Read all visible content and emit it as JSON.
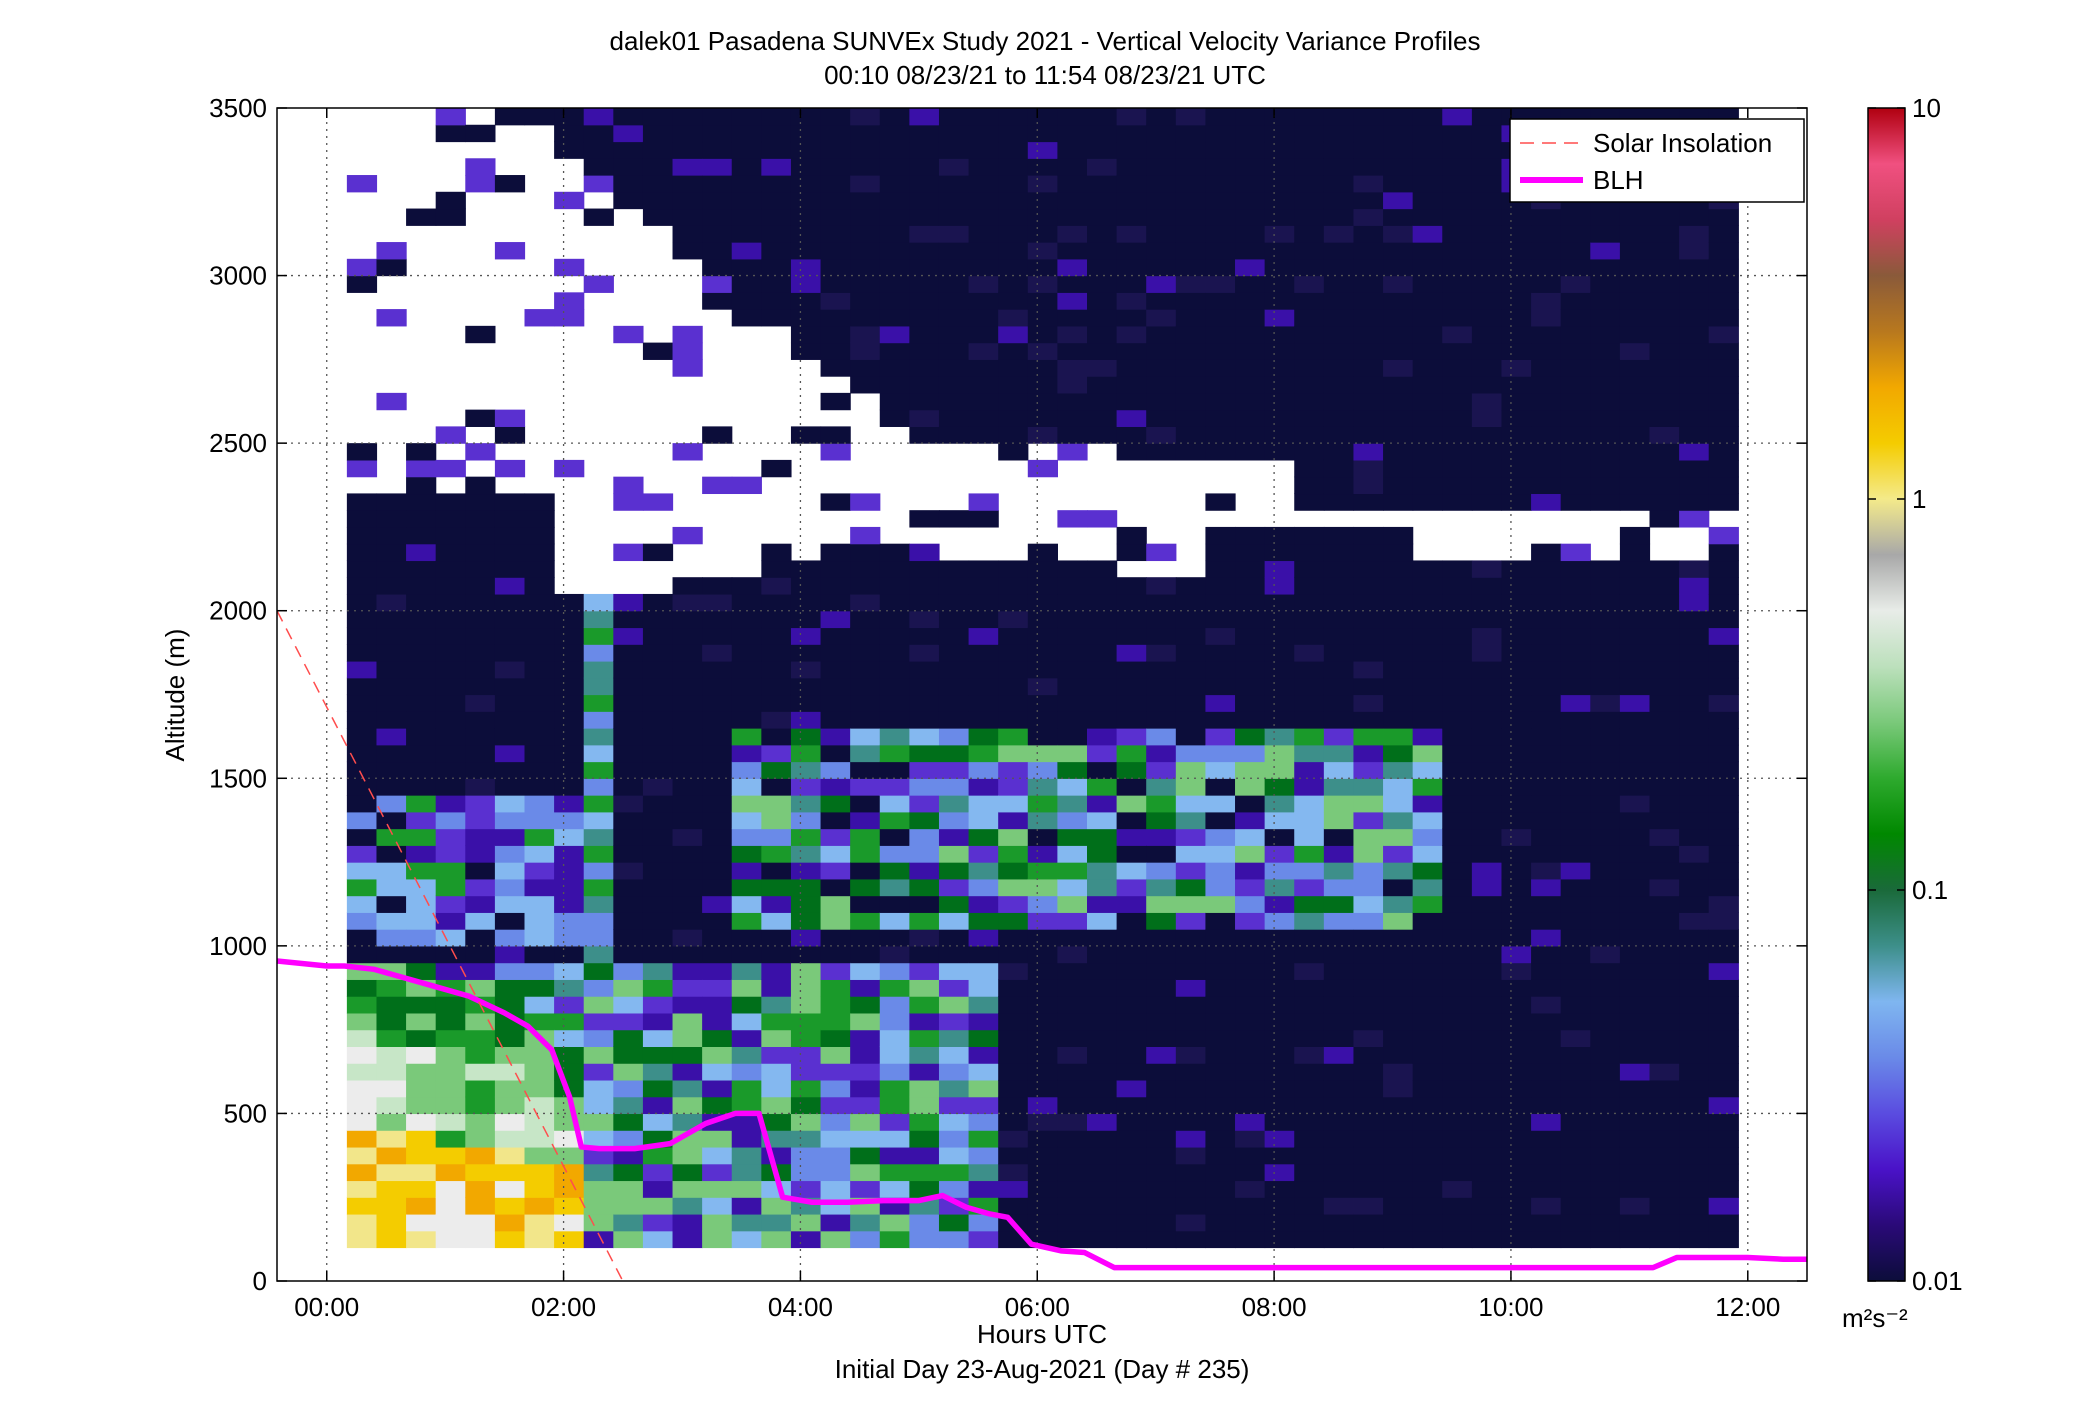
{
  "chart_data": {
    "type": "heatmap",
    "title": "dalek01 Pasadena SUNVEx Study 2021 - Vertical Velocity Variance Profiles",
    "subtitle": "00:10 08/23/21 to 11:54 08/23/21  UTC",
    "xlabel": "Hours UTC",
    "xlabel2": "Initial Day 23-Aug-2021 (Day # 235)",
    "ylabel": "Altitude (m)",
    "x_tick_labels": [
      "00:00",
      "02:00",
      "04:00",
      "06:00",
      "08:00",
      "10:00",
      "12:00"
    ],
    "x_ticks_hours": [
      0,
      2,
      4,
      6,
      8,
      10,
      12
    ],
    "xlim_hours": [
      -0.42,
      12.5
    ],
    "y_tick_labels": [
      "0",
      "500",
      "1000",
      "1500",
      "2000",
      "2500",
      "3000",
      "3500"
    ],
    "y_ticks": [
      0,
      500,
      1000,
      1500,
      2000,
      2500,
      3000,
      3500
    ],
    "ylim": [
      0,
      3500
    ],
    "grid": true,
    "colorbar": {
      "scale": "log",
      "range": [
        0.01,
        10
      ],
      "tick_labels": [
        "0.01",
        "0.1",
        "1",
        "10"
      ],
      "tick_values": [
        0.01,
        0.1,
        1,
        10
      ],
      "unit_label": "m²s⁻²",
      "colors": [
        "#0c0d3a",
        "#2a0a78",
        "#4a12c8",
        "#5a4ce0",
        "#6a8ae8",
        "#7fb6f0",
        "#3d8f8a",
        "#1a6a3a",
        "#008800",
        "#2eaa2e",
        "#7ac97a",
        "#bce0bc",
        "#e8ece8",
        "#a8a8a8",
        "#f4ea8a",
        "#f4cc00",
        "#f2a800",
        "#b8781e",
        "#8a5a3a",
        "#d04060",
        "#f05080",
        "#b00010"
      ]
    },
    "legend": {
      "position": "top-right",
      "entries": [
        {
          "name": "Solar Insolation",
          "color": "#ff4d4d",
          "style": "dashed"
        },
        {
          "name": "BLH",
          "color": "#ff00ff",
          "style": "solid"
        }
      ]
    },
    "series": [
      {
        "name": "BLH",
        "x_hours": [
          -0.42,
          0.0,
          0.15,
          0.4,
          0.6,
          0.9,
          1.2,
          1.5,
          1.7,
          1.9,
          2.05,
          2.15,
          2.3,
          2.6,
          2.9,
          3.2,
          3.45,
          3.65,
          3.85,
          4.1,
          4.4,
          4.7,
          5.0,
          5.2,
          5.4,
          5.6,
          5.75,
          5.95,
          6.2,
          6.4,
          6.65,
          7.0,
          8.0,
          9.0,
          10.0,
          11.0,
          11.2,
          11.4,
          11.7,
          12.0,
          12.3,
          12.5
        ],
        "y": [
          955,
          940,
          940,
          930,
          910,
          880,
          850,
          800,
          760,
          690,
          550,
          400,
          395,
          395,
          410,
          470,
          500,
          500,
          250,
          235,
          235,
          240,
          240,
          255,
          220,
          200,
          190,
          110,
          90,
          85,
          40,
          40,
          40,
          40,
          40,
          40,
          40,
          70,
          70,
          70,
          65,
          65
        ]
      },
      {
        "name": "Solar Insolation",
        "x_hours": [
          -0.42,
          2.5
        ],
        "y": [
          2000,
          0
        ]
      }
    ],
    "data_extent_hours": [
      0.17,
      11.9
    ],
    "data_extent_altitude": [
      100,
      3500
    ],
    "cell_size": {
      "hours": 0.25,
      "altitude_m": 50
    }
  }
}
